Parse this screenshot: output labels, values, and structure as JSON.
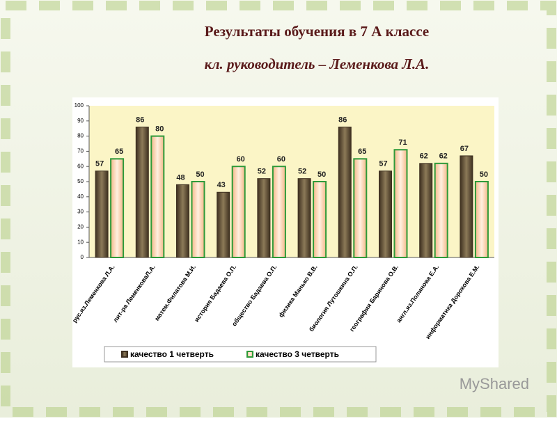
{
  "chart_data": {
    "type": "bar",
    "title": "Результаты обучения в 7 А классе",
    "subtitle": "кл. руководитель – Леменкова Л.А.",
    "watermark": "MyShared",
    "categories": [
      "рус.яз.Леменкова Л.А.",
      "лит-ра ЛеменковаЛ.А.",
      "матем.Филатова М.И.",
      "история Бадаева О.П.",
      "общество Бадаева О.П.",
      "физика Манько В.В.",
      "биология Лутошкина О.П.",
      "география Баринова О.В.",
      "англ.яз.Полинова Е.А.",
      "информатика Дорохова Е.М."
    ],
    "series": [
      {
        "name": "качество 1 четверть",
        "color": "#5a4a32",
        "values": [
          57,
          86,
          48,
          43,
          52,
          52,
          86,
          57,
          62,
          67
        ]
      },
      {
        "name": "качество 3 четверть",
        "color": "#f7c9a0",
        "values": [
          65,
          80,
          50,
          60,
          60,
          50,
          65,
          71,
          62,
          50
        ]
      }
    ],
    "ylim": [
      0,
      100
    ],
    "yticks": [
      0,
      10,
      20,
      30,
      40,
      50,
      60,
      70,
      80,
      90,
      100
    ],
    "legend": "bottom"
  }
}
